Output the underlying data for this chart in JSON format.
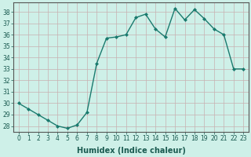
{
  "x": [
    0,
    1,
    2,
    3,
    4,
    5,
    6,
    7,
    8,
    9,
    10,
    11,
    12,
    13,
    14,
    15,
    16,
    17,
    18,
    19,
    20,
    21,
    22,
    23
  ],
  "y": [
    30.0,
    29.5,
    29.0,
    28.5,
    28.0,
    27.8,
    28.1,
    29.2,
    33.5,
    35.7,
    35.8,
    36.0,
    37.5,
    37.8,
    36.5,
    35.8,
    38.3,
    37.3,
    38.2,
    37.4,
    36.5,
    36.0,
    33.0,
    33.0
  ],
  "line_color": "#1a7a6e",
  "marker": "D",
  "marker_size": 2.0,
  "bg_color": "#cef0e8",
  "grid_color": "#c8b0b0",
  "plot_bg": "#cef0e8",
  "xlabel": "Humidex (Indice chaleur)",
  "xlim": [
    -0.5,
    23.5
  ],
  "ylim": [
    27.5,
    38.8
  ],
  "yticks": [
    28,
    29,
    30,
    31,
    32,
    33,
    34,
    35,
    36,
    37,
    38
  ],
  "xticks": [
    0,
    1,
    2,
    3,
    4,
    5,
    6,
    7,
    8,
    9,
    10,
    11,
    12,
    13,
    14,
    15,
    16,
    17,
    18,
    19,
    20,
    21,
    22,
    23
  ],
  "tick_fontsize": 5.5,
  "label_fontsize": 7.0,
  "linewidth": 1.0
}
